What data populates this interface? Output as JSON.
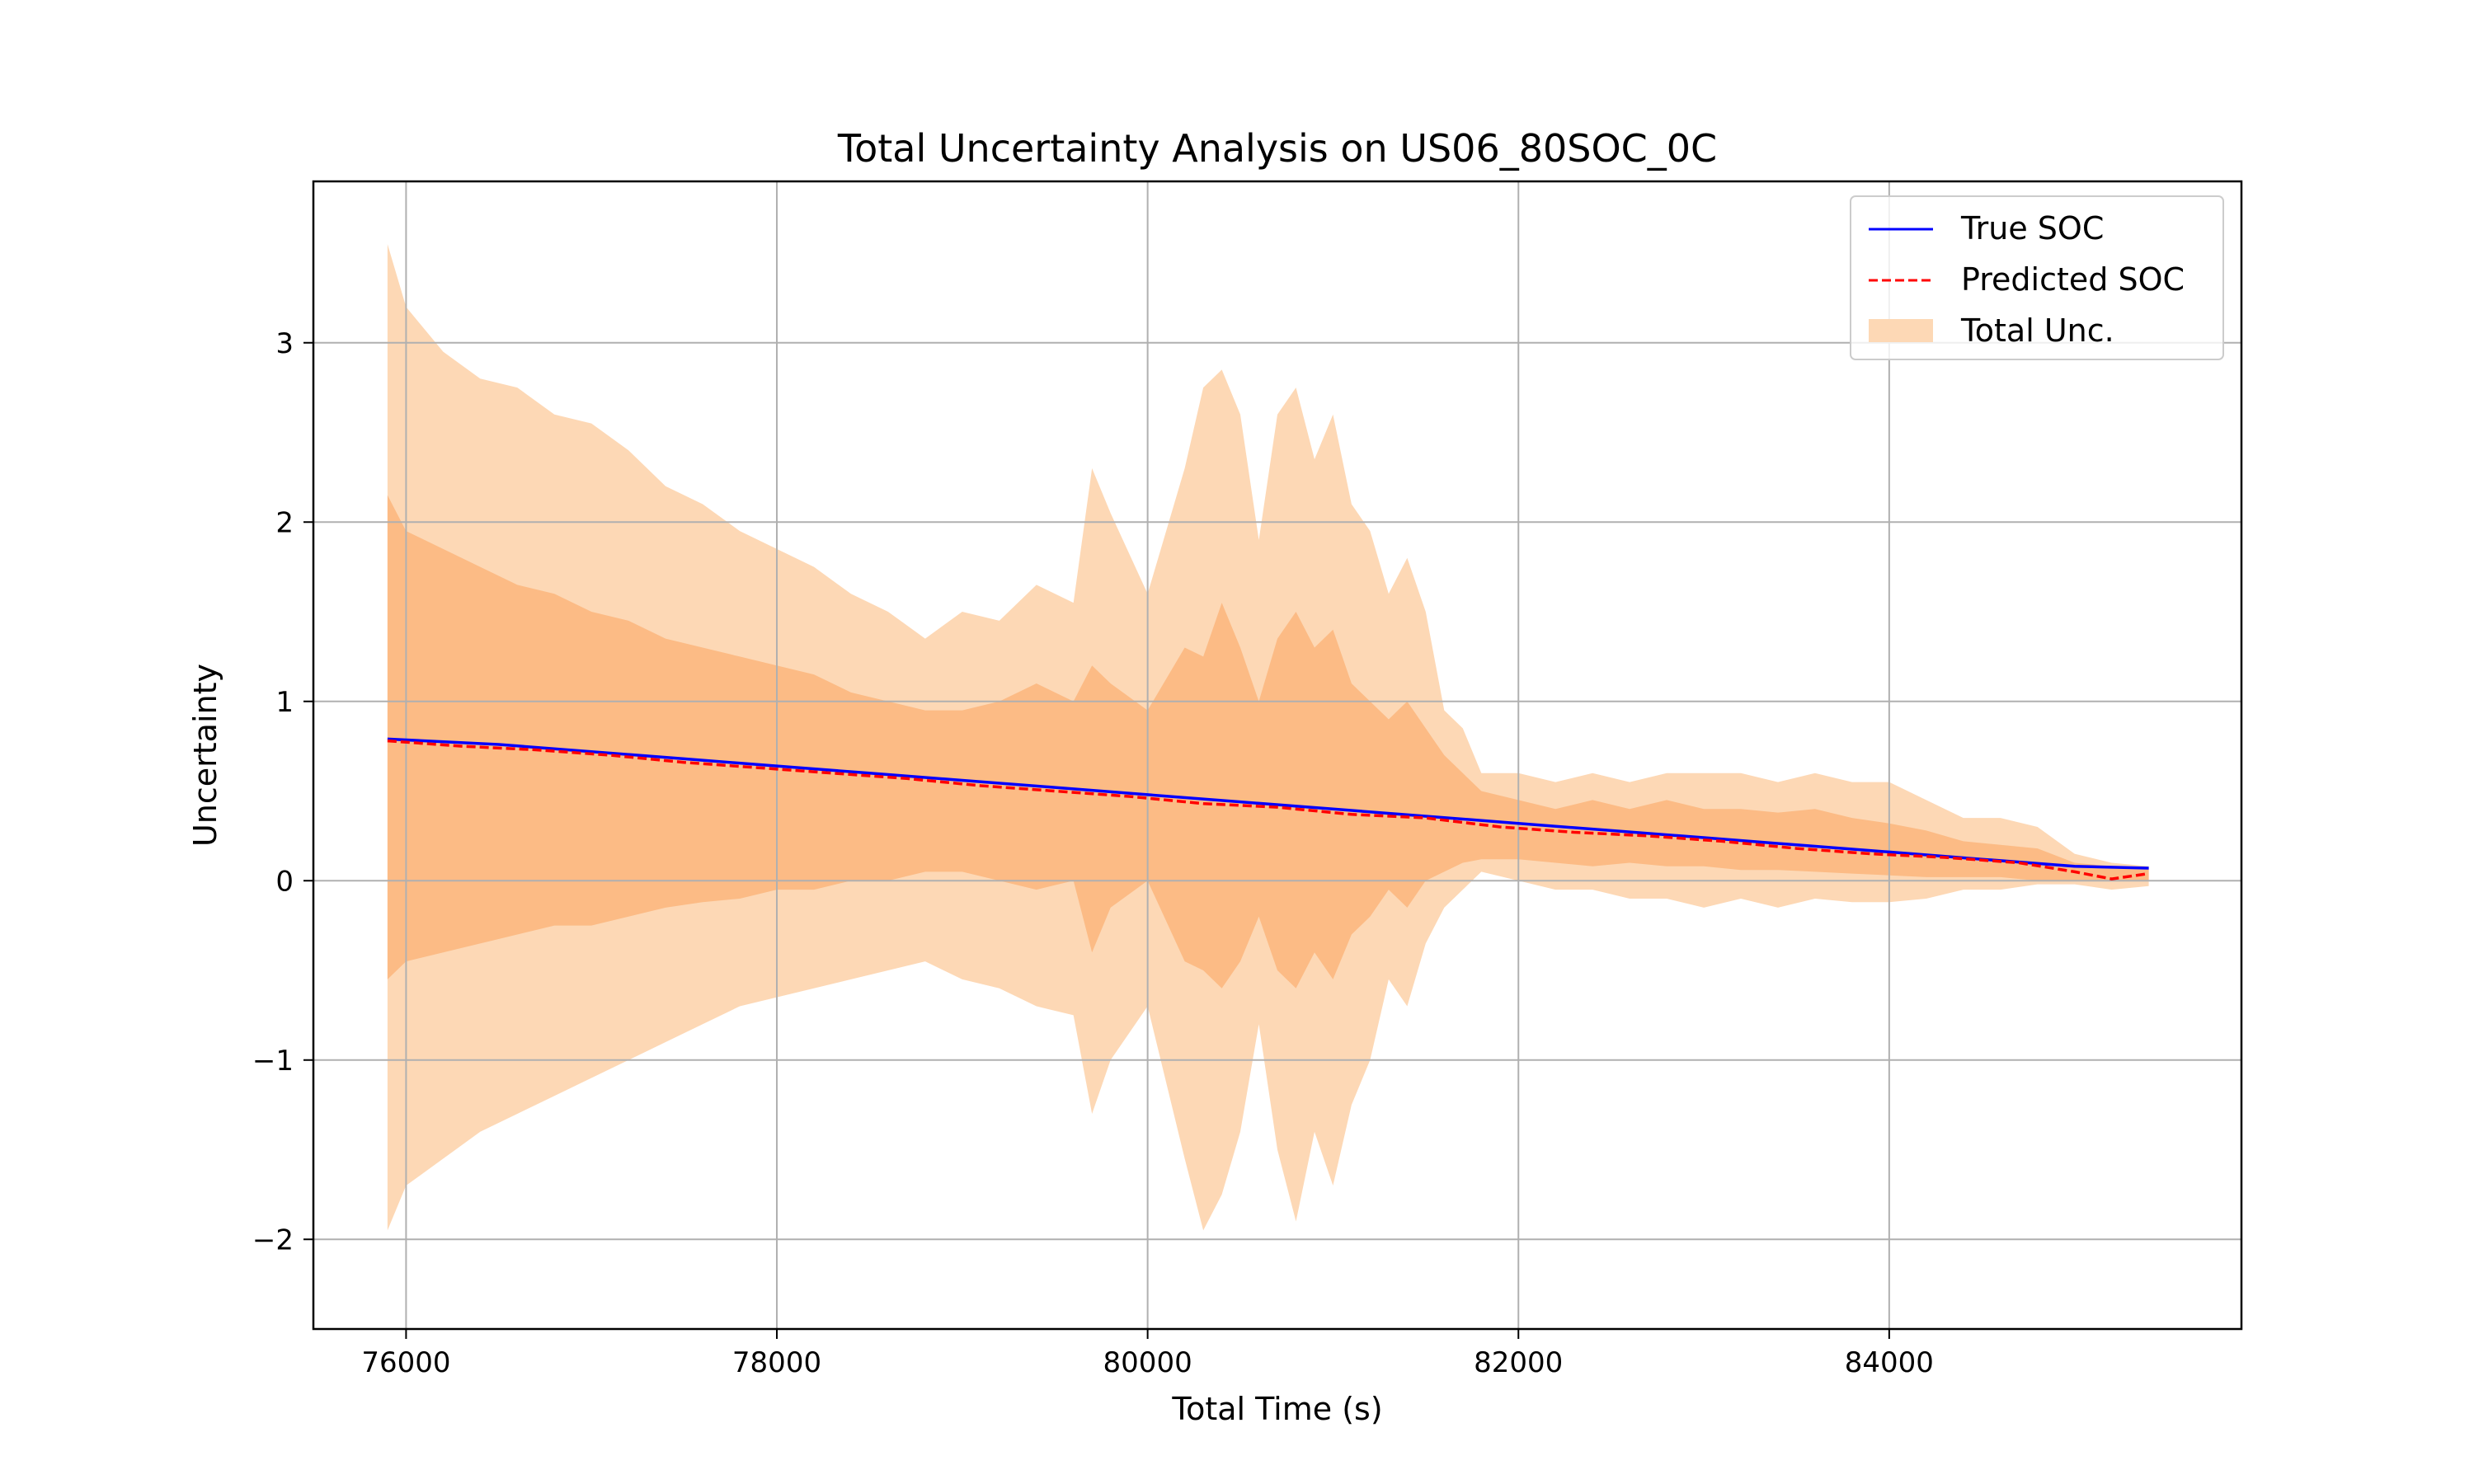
{
  "chart_data": {
    "type": "line",
    "title": "Total Uncertainty Analysis on US06_80SOC_0C",
    "xlabel": "Total Time (s)",
    "ylabel": "Uncertainty",
    "xlim": [
      75500,
      85900
    ],
    "ylim": [
      -2.5,
      3.9
    ],
    "xticks": [
      76000,
      78000,
      80000,
      82000,
      84000
    ],
    "xtick_labels": [
      "76000",
      "78000",
      "80000",
      "82000",
      "84000"
    ],
    "yticks": [
      -2,
      -1,
      0,
      1,
      2,
      3
    ],
    "ytick_labels": [
      "−2",
      "−1",
      "0",
      "1",
      "2",
      "3"
    ],
    "grid": true,
    "legend_position": "top-right",
    "colors": {
      "true_soc": "#0000ff",
      "predicted_soc": "#ff0000",
      "band_outer": "#fdd8b5",
      "band_inner": "#fcbb85",
      "grid": "#b0b0b0"
    },
    "series": [
      {
        "name": "True SOC",
        "style": "solid",
        "x": [
          75900,
          76500,
          77000,
          77500,
          78000,
          78500,
          79000,
          79500,
          80000,
          80500,
          81000,
          81500,
          82000,
          82500,
          83000,
          83500,
          84000,
          84500,
          85000,
          85400
        ],
        "y": [
          0.79,
          0.76,
          0.72,
          0.68,
          0.64,
          0.6,
          0.56,
          0.52,
          0.48,
          0.44,
          0.4,
          0.36,
          0.32,
          0.28,
          0.24,
          0.2,
          0.16,
          0.12,
          0.08,
          0.07
        ]
      },
      {
        "name": "Predicted SOC",
        "style": "dashed",
        "x": [
          75900,
          76300,
          76700,
          77100,
          77500,
          77900,
          78300,
          78700,
          79100,
          79500,
          79900,
          80300,
          80700,
          81100,
          81500,
          81900,
          82300,
          82700,
          83100,
          83500,
          83900,
          84300,
          84700,
          85000,
          85200,
          85400
        ],
        "y": [
          0.78,
          0.75,
          0.73,
          0.7,
          0.66,
          0.63,
          0.6,
          0.57,
          0.53,
          0.5,
          0.47,
          0.43,
          0.41,
          0.37,
          0.35,
          0.3,
          0.27,
          0.25,
          0.22,
          0.18,
          0.15,
          0.13,
          0.1,
          0.05,
          0.01,
          0.04
        ]
      }
    ],
    "uncertainty_band": {
      "name": "Total Unc.",
      "x": [
        75900,
        76000,
        76200,
        76400,
        76600,
        76800,
        77000,
        77200,
        77400,
        77600,
        77800,
        78000,
        78200,
        78400,
        78600,
        78800,
        79000,
        79200,
        79400,
        79600,
        79700,
        79800,
        80000,
        80200,
        80300,
        80400,
        80500,
        80600,
        80700,
        80800,
        80900,
        81000,
        81100,
        81200,
        81300,
        81400,
        81500,
        81600,
        81700,
        81800,
        82000,
        82200,
        82400,
        82600,
        82800,
        83000,
        83200,
        83400,
        83600,
        83800,
        84000,
        84200,
        84400,
        84600,
        84800,
        85000,
        85200,
        85400
      ],
      "outer_upper": [
        3.55,
        3.2,
        2.95,
        2.8,
        2.75,
        2.6,
        2.55,
        2.4,
        2.2,
        2.1,
        1.95,
        1.85,
        1.75,
        1.6,
        1.5,
        1.35,
        1.5,
        1.45,
        1.65,
        1.55,
        2.3,
        2.05,
        1.6,
        2.3,
        2.75,
        2.85,
        2.6,
        1.9,
        2.6,
        2.75,
        2.35,
        2.6,
        2.1,
        1.95,
        1.6,
        1.8,
        1.5,
        0.95,
        0.85,
        0.6,
        0.6,
        0.55,
        0.6,
        0.55,
        0.6,
        0.6,
        0.6,
        0.55,
        0.6,
        0.55,
        0.55,
        0.45,
        0.35,
        0.35,
        0.3,
        0.15,
        0.1,
        0.08
      ],
      "inner_upper": [
        2.15,
        1.95,
        1.85,
        1.75,
        1.65,
        1.6,
        1.5,
        1.45,
        1.35,
        1.3,
        1.25,
        1.2,
        1.15,
        1.05,
        1.0,
        0.95,
        0.95,
        1.0,
        1.1,
        1.0,
        1.2,
        1.1,
        0.95,
        1.3,
        1.25,
        1.55,
        1.3,
        1.0,
        1.35,
        1.5,
        1.3,
        1.4,
        1.1,
        1.0,
        0.9,
        1.0,
        0.85,
        0.7,
        0.6,
        0.5,
        0.45,
        0.4,
        0.45,
        0.4,
        0.45,
        0.4,
        0.4,
        0.38,
        0.4,
        0.35,
        0.32,
        0.28,
        0.22,
        0.2,
        0.18,
        0.1,
        0.08,
        0.07
      ],
      "inner_lower": [
        -0.55,
        -0.45,
        -0.4,
        -0.35,
        -0.3,
        -0.25,
        -0.25,
        -0.2,
        -0.15,
        -0.12,
        -0.1,
        -0.05,
        -0.05,
        0.0,
        0.0,
        0.05,
        0.05,
        0.0,
        -0.05,
        0.0,
        -0.4,
        -0.15,
        0.0,
        -0.45,
        -0.5,
        -0.6,
        -0.45,
        -0.2,
        -0.5,
        -0.6,
        -0.4,
        -0.55,
        -0.3,
        -0.2,
        -0.05,
        -0.15,
        0.0,
        0.05,
        0.1,
        0.12,
        0.12,
        0.1,
        0.08,
        0.1,
        0.08,
        0.08,
        0.06,
        0.06,
        0.05,
        0.04,
        0.03,
        0.02,
        0.02,
        0.02,
        0.0,
        0.0,
        0.0,
        0.0
      ],
      "outer_lower": [
        -1.95,
        -1.7,
        -1.55,
        -1.4,
        -1.3,
        -1.2,
        -1.1,
        -1.0,
        -0.9,
        -0.8,
        -0.7,
        -0.65,
        -0.6,
        -0.55,
        -0.5,
        -0.45,
        -0.55,
        -0.6,
        -0.7,
        -0.75,
        -1.3,
        -1.0,
        -0.7,
        -1.55,
        -1.95,
        -1.75,
        -1.4,
        -0.8,
        -1.5,
        -1.9,
        -1.4,
        -1.7,
        -1.25,
        -1.0,
        -0.55,
        -0.7,
        -0.35,
        -0.15,
        -0.05,
        0.05,
        0.0,
        -0.05,
        -0.05,
        -0.1,
        -0.1,
        -0.15,
        -0.1,
        -0.15,
        -0.1,
        -0.12,
        -0.12,
        -0.1,
        -0.05,
        -0.05,
        -0.02,
        -0.02,
        -0.05,
        -0.03
      ]
    }
  }
}
